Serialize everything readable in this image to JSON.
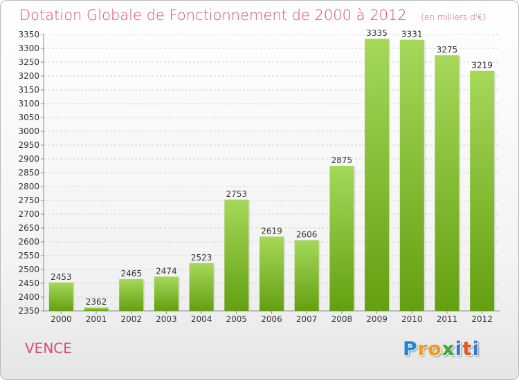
{
  "chart_data": {
    "type": "bar",
    "title": "Dotation Globale de Fonctionnement de 2000 à 2012",
    "subtitle": "(en milliers d'€)",
    "categories": [
      "2000",
      "2001",
      "2002",
      "2003",
      "2004",
      "2005",
      "2006",
      "2007",
      "2008",
      "2009",
      "2010",
      "2011",
      "2012"
    ],
    "values": [
      2453,
      2362,
      2465,
      2474,
      2523,
      2753,
      2619,
      2606,
      2875,
      3335,
      3331,
      3275,
      3219
    ],
    "ylim": [
      2350,
      3350
    ],
    "yticks": [
      2350,
      2400,
      2450,
      2500,
      2550,
      2600,
      2650,
      2700,
      2750,
      2800,
      2850,
      2900,
      2950,
      3000,
      3050,
      3100,
      3150,
      3200,
      3250,
      3300,
      3350
    ],
    "grid": true,
    "xlabel": "",
    "ylabel": ""
  },
  "place": "VENCE",
  "brand": {
    "letters": [
      "P",
      "r",
      "o",
      "x",
      "i",
      "t",
      "i"
    ],
    "colors": [
      "#1e88d8",
      "#f09a1c",
      "#f09a1c",
      "#3aa83a",
      "#2c7fd8",
      "#e05a1e",
      "#2c7fd8"
    ]
  },
  "colors": {
    "bar_top": "#a6d85a",
    "bar_bottom": "#63a010",
    "title": "#d84a6e"
  }
}
